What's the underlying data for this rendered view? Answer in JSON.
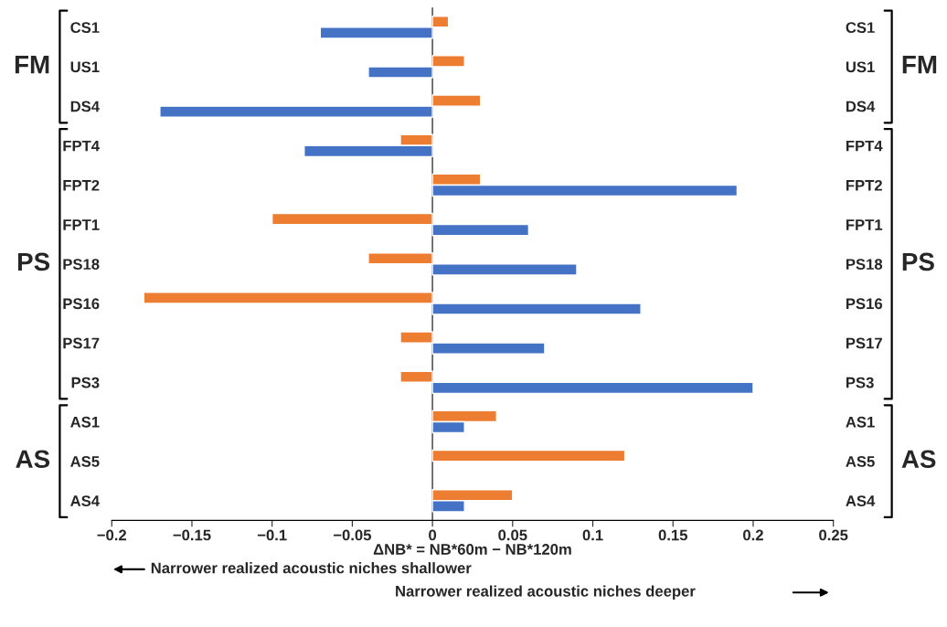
{
  "chart_data": {
    "type": "bar",
    "orientation": "horizontal",
    "categories": [
      "CS1",
      "US1",
      "DS4",
      "FPT4",
      "FPT2",
      "FPT1",
      "PS18",
      "PS16",
      "PS17",
      "PS3",
      "AS1",
      "AS5",
      "AS4"
    ],
    "series": [
      {
        "color": "#ed7d31",
        "values": [
          0.01,
          0.02,
          0.03,
          -0.02,
          0.03,
          -0.1,
          -0.04,
          -0.18,
          -0.02,
          -0.02,
          0.04,
          0.12,
          0.05
        ]
      },
      {
        "color": "#4472c4",
        "values": [
          -0.07,
          -0.04,
          -0.17,
          -0.08,
          0.19,
          0.06,
          0.09,
          0.13,
          0.07,
          0.2,
          0.02,
          null,
          0.02
        ]
      }
    ],
    "xlim": [
      -0.2,
      0.25
    ],
    "xticks": [
      {
        "value": -0.2,
        "label": "−0.2"
      },
      {
        "value": -0.15,
        "label": "−0.15"
      },
      {
        "value": -0.1,
        "label": "−0.1"
      },
      {
        "value": -0.05,
        "label": "−0.05"
      },
      0,
      0.05,
      0.1,
      0.15,
      0.2,
      0.25
    ],
    "xlabel": "ΔNB* = NB*60m − NB*120m",
    "ref_lines": [
      {
        "axis": "x",
        "value": 0,
        "color": "#595959"
      }
    ],
    "annotations": [
      "FM",
      "PS",
      "AS",
      "Narrower realized acoustic niches shallower",
      "Narrower realized acoustic niches deeper"
    ],
    "grid": false,
    "legend": false
  }
}
